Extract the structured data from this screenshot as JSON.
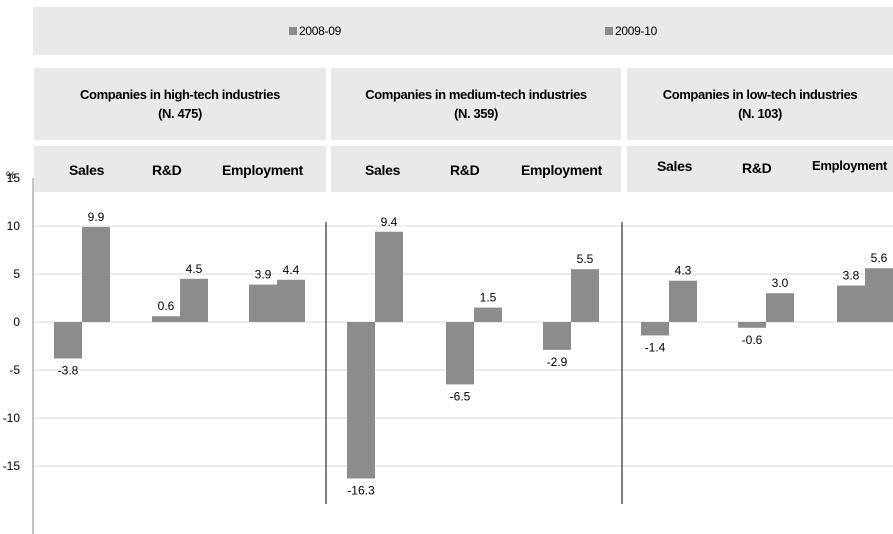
{
  "legend": {
    "items": [
      {
        "label": "2008-09",
        "color": "#8c8c8c"
      },
      {
        "label": "2009-10",
        "color": "#8c8c8c"
      }
    ]
  },
  "y_unit": "%",
  "groups": [
    {
      "title": "Companies in high-tech industries",
      "subtitle": "(N. 475)",
      "metrics": [
        "Sales",
        "R&D",
        "Employment"
      ]
    },
    {
      "title": "Companies in medium-tech industries",
      "subtitle": "(N. 359)",
      "metrics": [
        "Sales",
        "R&D",
        "Employment"
      ]
    },
    {
      "title": "Companies in low-tech industries",
      "subtitle": "(N. 103)",
      "metrics": [
        "Sales",
        "R&D",
        "Employment"
      ]
    }
  ],
  "chart_data": {
    "type": "bar",
    "bar_color": "#8c8c8c",
    "categories": [
      "High-tech Sales",
      "High-tech R&D",
      "High-tech Employment",
      "Medium-tech Sales",
      "Medium-tech R&D",
      "Medium-tech Employment",
      "Low-tech Sales",
      "Low-tech R&D",
      "Low-tech Employment"
    ],
    "series": [
      {
        "name": "2008-09",
        "values": [
          -3.8,
          0.6,
          3.9,
          -16.3,
          -6.5,
          -2.9,
          -1.4,
          -0.6,
          3.8
        ]
      },
      {
        "name": "2009-10",
        "values": [
          9.9,
          4.5,
          4.4,
          9.4,
          1.5,
          5.5,
          4.3,
          3.0,
          5.6
        ]
      }
    ],
    "data_labels": [
      [
        "-3.8",
        "0.6",
        "3.9",
        "-16.3",
        "-6.5",
        "-2.9",
        "-1.4",
        "-0.6",
        "3.8"
      ],
      [
        "9.9",
        "4.5",
        "4.4",
        "9.4",
        "1.5",
        "5.5",
        "4.3",
        "3.0",
        "5.6"
      ]
    ],
    "ylim": [
      -17,
      15
    ],
    "yticks": [
      15,
      10,
      5,
      0,
      -5,
      -10,
      -15
    ],
    "ytick_labels": [
      "15",
      "10",
      "5",
      "0",
      "-5",
      "-10",
      "-15"
    ],
    "grid": true,
    "legend_position": "top"
  }
}
